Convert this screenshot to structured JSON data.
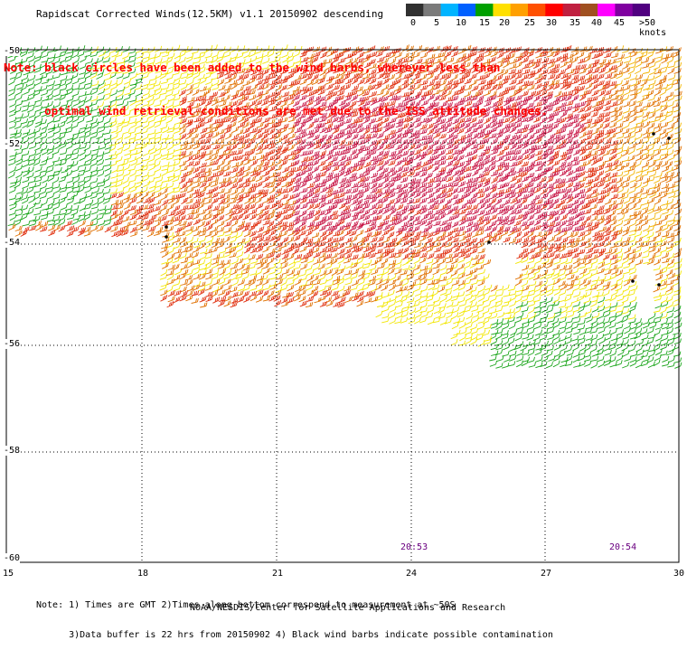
{
  "header": {
    "title": "Rapidscat Corrected Winds(12.5KM) v1.1 20150902 descending",
    "note_line1": "Note: black circles have been added to the wind barbs, wherever less than",
    "note_line2": "      optimal wind retrieval conditions are met due to the ISS attitude changes."
  },
  "colorbar": {
    "labels": [
      "0",
      "5",
      "10",
      "15",
      "20",
      "25",
      "30",
      "35",
      "40",
      "45",
      ">50 knots"
    ],
    "colors": [
      "#303030",
      "#7a7a7a",
      "#00b4ff",
      "#0060ff",
      "#00a000",
      "#ffe000",
      "#ffa000",
      "#ff5000",
      "#ff0000",
      "#c02040",
      "#a05020",
      "#ff00ff",
      "#8000a0",
      "#500080"
    ]
  },
  "axes": {
    "y_labels": [
      "-50",
      "-52",
      "-54",
      "-56",
      "-58",
      "-60"
    ],
    "x_labels": [
      "15",
      "18",
      "21",
      "24",
      "27",
      "30"
    ]
  },
  "times": [
    "20:53",
    "20:54"
  ],
  "footer": {
    "line1": "Note: 1) Times are GMT 2)Times along bottom correspond to measurement at ~50S",
    "line2": "      3)Data buffer is 22 hrs from 20150902 4) Black wind barbs indicate possible contamination",
    "credit": "NOAA/NESDIS/Center for Satellite Applications and Research"
  }
}
